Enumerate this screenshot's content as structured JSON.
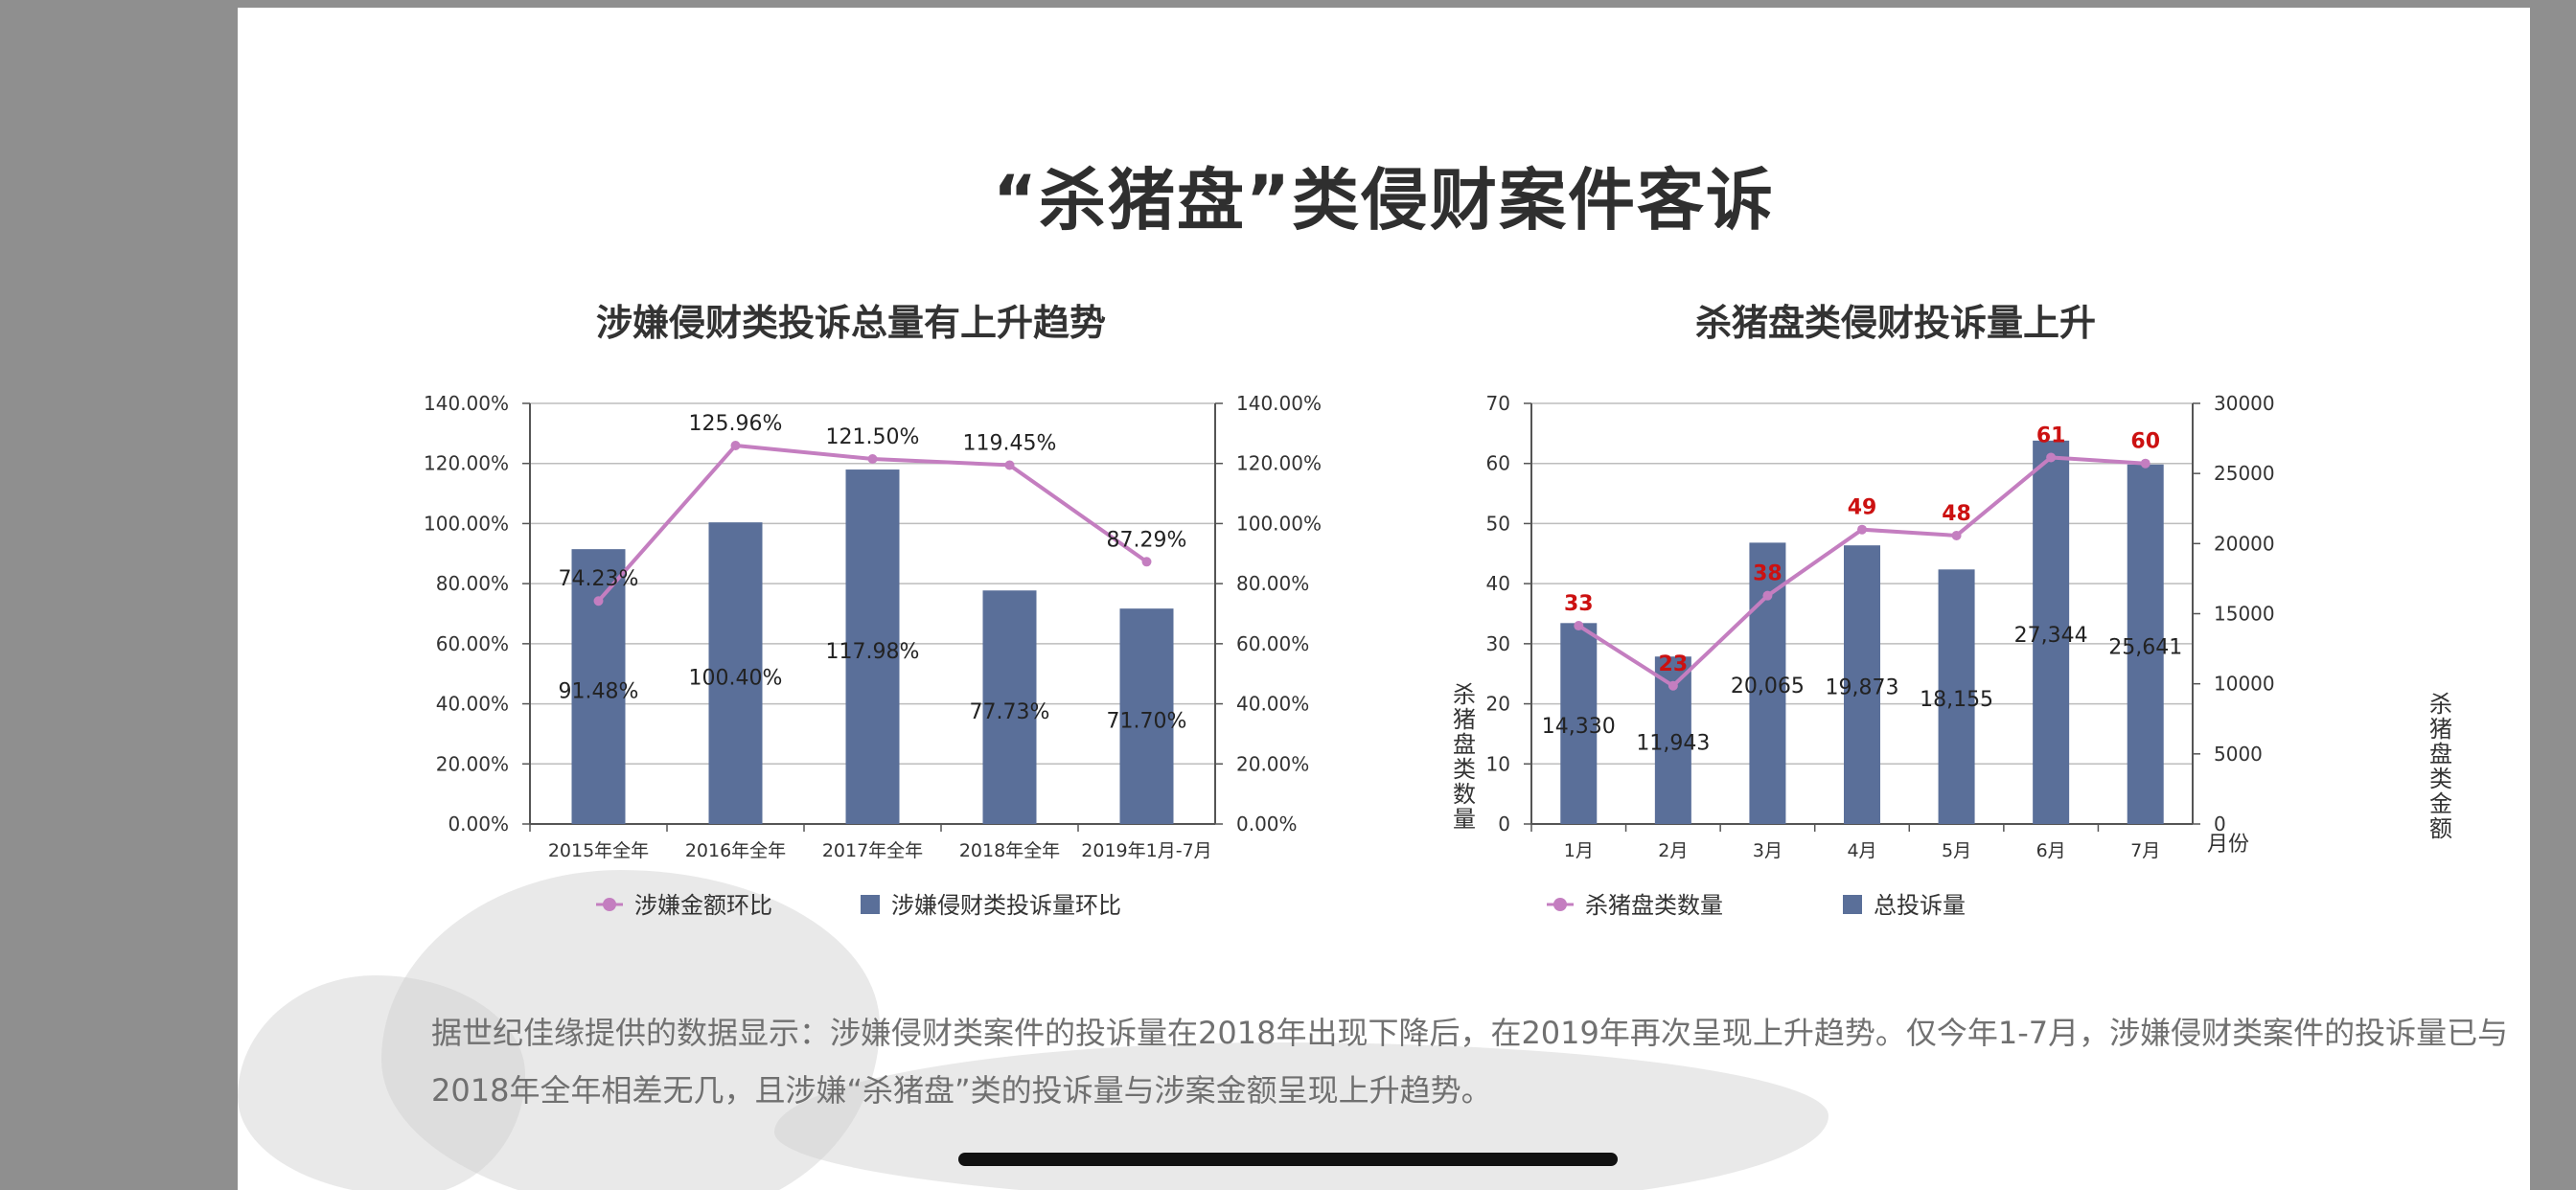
{
  "page": {
    "title": "“杀猪盘”类侵财案件客诉",
    "body_text": "据世纪佳缘提供的数据显示：涉嫌侵财类案件的投诉量在2018年出现下降后，在2019年再次呈现上升趋势。仅今年1-7月，涉嫌侵财类案件的投诉量已与2018年全年相差无几，且涉嫌“杀猪盘”类的投诉量与涉案金额呈现上升趋势。"
  },
  "colors": {
    "bar": "#5a6f99",
    "line": "#c47ec0",
    "red_label": "#cc1111",
    "grid": "#bdbdbd",
    "axis": "#555555"
  },
  "chart_data": [
    {
      "type": "bar",
      "title": "涉嫌侵财类投诉总量有上升趋势",
      "categories": [
        "2015年全年",
        "2016年全年",
        "2017年全年",
        "2018年全年",
        "2019年1月-7月"
      ],
      "series": [
        {
          "name": "涉嫌金额环比",
          "kind": "line",
          "axis": "left",
          "values": [
            74.23,
            125.96,
            121.5,
            119.45,
            87.29
          ],
          "labels": [
            "74.23%",
            "125.96%",
            "121.50%",
            "119.45%",
            "87.29%"
          ]
        },
        {
          "name": "涉嫌侵财类投诉量环比",
          "kind": "bar",
          "axis": "left",
          "values": [
            91.48,
            100.4,
            117.98,
            77.73,
            71.7
          ],
          "labels": [
            "91.48%",
            "100.40%",
            "117.98%",
            "77.73%",
            "71.70%"
          ]
        }
      ],
      "yticks_left": [
        "0.00%",
        "20.00%",
        "40.00%",
        "60.00%",
        "80.00%",
        "100.00%",
        "120.00%",
        "140.00%"
      ],
      "yticks_right": [
        "0.00%",
        "20.00%",
        "40.00%",
        "60.00%",
        "80.00%",
        "100.00%",
        "120.00%",
        "140.00%"
      ],
      "ylim": [
        0,
        140
      ],
      "grid": true,
      "legend_position": "bottom"
    },
    {
      "type": "bar",
      "title": "杀猪盘类侵财投诉量上升",
      "categories": [
        "1月",
        "2月",
        "3月",
        "4月",
        "5月",
        "6月",
        "7月"
      ],
      "xlabel": "月份",
      "ylabel_left": "杀猪盘类数量",
      "ylabel_right": "杀猪盘类金额",
      "series": [
        {
          "name": "杀猪盘类数量",
          "kind": "line",
          "axis": "left",
          "values": [
            33,
            23,
            38,
            49,
            48,
            61,
            60
          ],
          "labels": [
            "33",
            "23",
            "38",
            "49",
            "48",
            "61",
            "60"
          ]
        },
        {
          "name": "总投诉量",
          "kind": "bar",
          "axis": "right",
          "values": [
            14330,
            11943,
            20065,
            19873,
            18155,
            27344,
            25641
          ],
          "labels": [
            "14,330",
            "11,943",
            "20,065",
            "19,873",
            "18,155",
            "27,344",
            "25,641"
          ]
        }
      ],
      "yticks_left": [
        "0",
        "10",
        "20",
        "30",
        "40",
        "50",
        "60",
        "70"
      ],
      "yticks_right": [
        "0",
        "5000",
        "10000",
        "15000",
        "20000",
        "25000",
        "30000"
      ],
      "ylim_left": [
        0,
        70
      ],
      "ylim_right": [
        0,
        30000
      ],
      "grid": true,
      "legend_position": "bottom"
    }
  ]
}
